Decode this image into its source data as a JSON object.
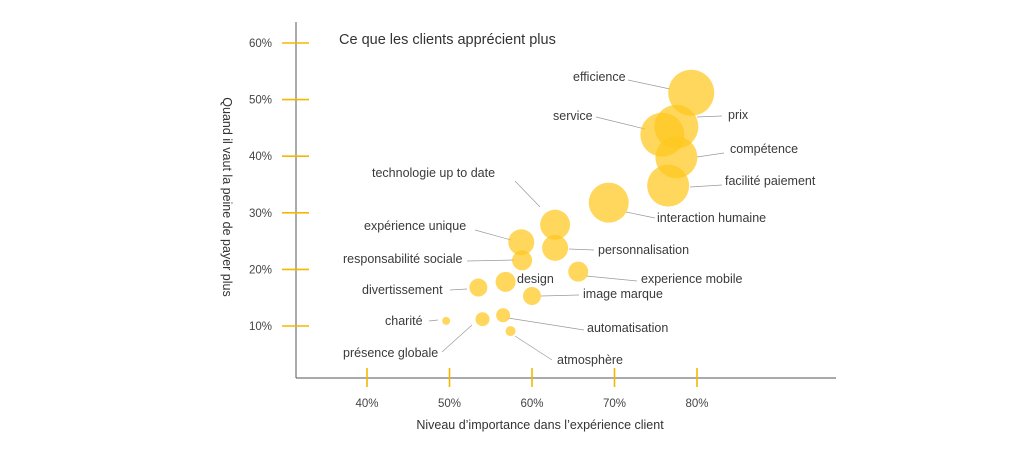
{
  "chart_data": {
    "type": "scatter",
    "title": "Ce que les clients apprécient plus",
    "xlabel": "Niveau d’importance dans l’expérience client",
    "ylabel": "Quand il vaut la peine de payer plus",
    "xlim": [
      30,
      95
    ],
    "ylim": [
      3,
      64
    ],
    "xticks": [
      40,
      50,
      60,
      70,
      80
    ],
    "yticks": [
      10,
      20,
      30,
      40,
      50,
      60
    ],
    "xtick_labels": [
      "40%",
      "50%",
      "60%",
      "70%",
      "80%"
    ],
    "ytick_labels": [
      "10%",
      "20%",
      "30%",
      "40%",
      "50%",
      "60%"
    ],
    "bubble_color": "#FFC81E",
    "axis_tick_color": "#F5B800",
    "axis_color": "#555555",
    "grid": false,
    "points": [
      {
        "label": "efficience",
        "x": 79.3,
        "y": 51.2,
        "size": 23
      },
      {
        "label": "prix",
        "x": 77.5,
        "y": 45.2,
        "size": 22
      },
      {
        "label": "service",
        "x": 75.8,
        "y": 43.8,
        "size": 22
      },
      {
        "label": "compétence",
        "x": 77.5,
        "y": 39.8,
        "size": 21
      },
      {
        "label": "facilité paiement",
        "x": 76.5,
        "y": 34.8,
        "size": 21
      },
      {
        "label": "interaction humaine",
        "x": 69.3,
        "y": 31.8,
        "size": 20
      },
      {
        "label": "technologie up to date",
        "x": 62.8,
        "y": 27.9,
        "size": 15
      },
      {
        "label": "expérience unique",
        "x": 58.7,
        "y": 24.8,
        "size": 13
      },
      {
        "label": "personnalisation",
        "x": 62.8,
        "y": 23.8,
        "size": 13
      },
      {
        "label": "responsabilité sociale",
        "x": 58.8,
        "y": 21.6,
        "size": 10
      },
      {
        "label": "experience mobile",
        "x": 65.6,
        "y": 19.6,
        "size": 10
      },
      {
        "label": "design",
        "x": 56.8,
        "y": 17.8,
        "size": 10
      },
      {
        "label": "divertissement",
        "x": 53.5,
        "y": 16.8,
        "size": 9
      },
      {
        "label": "image marque",
        "x": 60.0,
        "y": 15.3,
        "size": 9
      },
      {
        "label": "automatisation",
        "x": 56.5,
        "y": 11.9,
        "size": 7
      },
      {
        "label": "charité",
        "x": 49.6,
        "y": 10.9,
        "size": 4
      },
      {
        "label": "présence globale",
        "x": 54.0,
        "y": 11.2,
        "size": 7
      },
      {
        "label": "atmosphère",
        "x": 57.4,
        "y": 9.1,
        "size": 5
      }
    ]
  }
}
